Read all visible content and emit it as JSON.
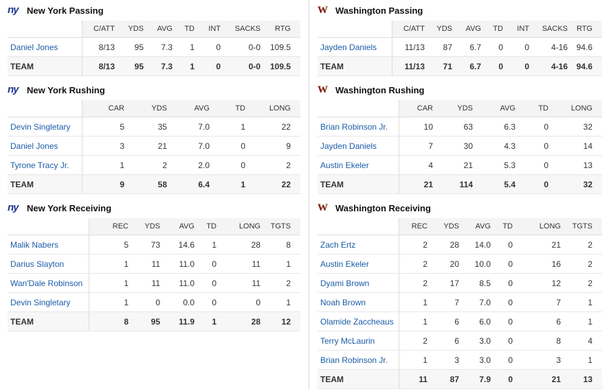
{
  "left": {
    "passing": {
      "title": "New York Passing",
      "headers": [
        "C/ATT",
        "YDS",
        "AVG",
        "TD",
        "INT",
        "SACKS",
        "RTG"
      ],
      "rows": [
        {
          "name": "Daniel Jones",
          "vals": [
            "8/13",
            "95",
            "7.3",
            "1",
            "0",
            "0-0",
            "109.5"
          ]
        }
      ],
      "team": {
        "name": "TEAM",
        "vals": [
          "8/13",
          "95",
          "7.3",
          "1",
          "0",
          "0-0",
          "109.5"
        ]
      }
    },
    "rushing": {
      "title": "New York Rushing",
      "headers": [
        "CAR",
        "YDS",
        "AVG",
        "TD",
        "LONG"
      ],
      "rows": [
        {
          "name": "Devin Singletary",
          "vals": [
            "5",
            "35",
            "7.0",
            "1",
            "22"
          ]
        },
        {
          "name": "Daniel Jones",
          "vals": [
            "3",
            "21",
            "7.0",
            "0",
            "9"
          ]
        },
        {
          "name": "Tyrone Tracy Jr.",
          "vals": [
            "1",
            "2",
            "2.0",
            "0",
            "2"
          ]
        }
      ],
      "team": {
        "name": "TEAM",
        "vals": [
          "9",
          "58",
          "6.4",
          "1",
          "22"
        ]
      }
    },
    "receiving": {
      "title": "New York Receiving",
      "headers": [
        "REC",
        "YDS",
        "AVG",
        "TD",
        "LONG",
        "TGTS"
      ],
      "rows": [
        {
          "name": "Malik Nabers",
          "vals": [
            "5",
            "73",
            "14.6",
            "1",
            "28",
            "8"
          ]
        },
        {
          "name": "Darius Slayton",
          "vals": [
            "1",
            "11",
            "11.0",
            "0",
            "11",
            "1"
          ]
        },
        {
          "name": "Wan'Dale Robinson",
          "vals": [
            "1",
            "11",
            "11.0",
            "0",
            "11",
            "2"
          ]
        },
        {
          "name": "Devin Singletary",
          "vals": [
            "1",
            "0",
            "0.0",
            "0",
            "0",
            "1"
          ]
        }
      ],
      "team": {
        "name": "TEAM",
        "vals": [
          "8",
          "95",
          "11.9",
          "1",
          "28",
          "12"
        ]
      }
    }
  },
  "right": {
    "passing": {
      "title": "Washington Passing",
      "headers": [
        "C/ATT",
        "YDS",
        "AVG",
        "TD",
        "INT",
        "SACKS",
        "RTG"
      ],
      "rows": [
        {
          "name": "Jayden Daniels",
          "vals": [
            "11/13",
            "87",
            "6.7",
            "0",
            "0",
            "4-16",
            "94.6"
          ]
        }
      ],
      "team": {
        "name": "TEAM",
        "vals": [
          "11/13",
          "71",
          "6.7",
          "0",
          "0",
          "4-16",
          "94.6"
        ]
      }
    },
    "rushing": {
      "title": "Washington Rushing",
      "headers": [
        "CAR",
        "YDS",
        "AVG",
        "TD",
        "LONG"
      ],
      "rows": [
        {
          "name": "Brian Robinson Jr.",
          "vals": [
            "10",
            "63",
            "6.3",
            "0",
            "32"
          ]
        },
        {
          "name": "Jayden Daniels",
          "vals": [
            "7",
            "30",
            "4.3",
            "0",
            "14"
          ]
        },
        {
          "name": "Austin Ekeler",
          "vals": [
            "4",
            "21",
            "5.3",
            "0",
            "13"
          ]
        }
      ],
      "team": {
        "name": "TEAM",
        "vals": [
          "21",
          "114",
          "5.4",
          "0",
          "32"
        ]
      }
    },
    "receiving": {
      "title": "Washington Receiving",
      "headers": [
        "REC",
        "YDS",
        "AVG",
        "TD",
        "LONG",
        "TGTS"
      ],
      "rows": [
        {
          "name": "Zach Ertz",
          "vals": [
            "2",
            "28",
            "14.0",
            "0",
            "21",
            "2"
          ]
        },
        {
          "name": "Austin Ekeler",
          "vals": [
            "2",
            "20",
            "10.0",
            "0",
            "16",
            "2"
          ]
        },
        {
          "name": "Dyami Brown",
          "vals": [
            "2",
            "17",
            "8.5",
            "0",
            "12",
            "2"
          ]
        },
        {
          "name": "Noah Brown",
          "vals": [
            "1",
            "7",
            "7.0",
            "0",
            "7",
            "1"
          ]
        },
        {
          "name": "Olamide Zaccheaus",
          "vals": [
            "1",
            "6",
            "6.0",
            "0",
            "6",
            "1"
          ]
        },
        {
          "name": "Terry McLaurin",
          "vals": [
            "2",
            "6",
            "3.0",
            "0",
            "8",
            "4"
          ]
        },
        {
          "name": "Brian Robinson Jr.",
          "vals": [
            "1",
            "3",
            "3.0",
            "0",
            "3",
            "1"
          ]
        }
      ],
      "team": {
        "name": "TEAM",
        "vals": [
          "11",
          "87",
          "7.9",
          "0",
          "21",
          "13"
        ]
      }
    }
  },
  "logos": {
    "left": "ny",
    "right": "w"
  },
  "colors": {
    "link": "#1a5ca8",
    "ny_blue": "#1f3a8f",
    "was_burgundy": "#7a1c1c"
  }
}
